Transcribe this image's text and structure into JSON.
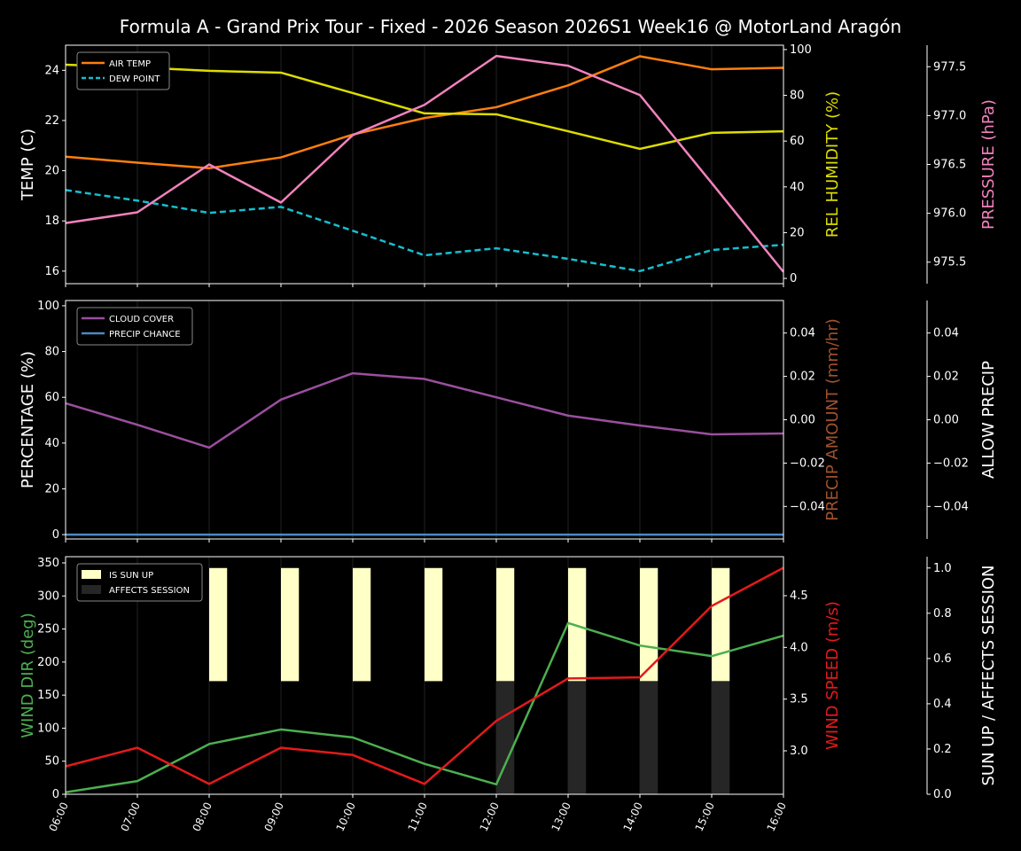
{
  "title": "Formula A - Grand Prix Tour - Fixed - 2026 Season  2026S1 Week16 @ MotorLand Aragón",
  "chart_data": [
    {
      "type": "line",
      "x": [
        "06:00",
        "07:00",
        "08:00",
        "09:00",
        "10:00",
        "11:00",
        "12:00",
        "13:00",
        "14:00",
        "15:00",
        "16:00"
      ],
      "ylabel": "TEMP (C)",
      "ylim": [
        15.5,
        25.0
      ],
      "yticks": [
        16,
        18,
        20,
        22,
        24
      ],
      "y2label": "REL HUMIDITY (%)",
      "y2lim": [
        -2.3,
        101.9
      ],
      "y2ticks": [
        0,
        20,
        40,
        60,
        80,
        100
      ],
      "y3label": "PRESSURE (hPa)",
      "y3lim": [
        975.28,
        977.72
      ],
      "y3ticks": [
        "975.5",
        "976.0",
        "976.5",
        "977.0",
        "977.5"
      ],
      "legend_placement": "upper-left",
      "series": [
        {
          "name": "AIR TEMP",
          "axis": "y",
          "color": "#ff7f0e",
          "dash": false,
          "values": [
            20.56,
            20.32,
            20.1,
            20.53,
            21.44,
            22.1,
            22.53,
            23.4,
            24.56,
            24.04,
            24.1
          ]
        },
        {
          "name": "DEW POINT",
          "axis": "y",
          "color": "#17becf",
          "dash": true,
          "values": [
            19.23,
            18.81,
            18.32,
            18.56,
            17.61,
            16.63,
            16.91,
            16.49,
            16.0,
            16.84,
            17.05
          ]
        },
        {
          "axis": "y2",
          "color": "#dddd00",
          "dash": false,
          "values": [
            93.4,
            92.2,
            90.7,
            89.9,
            81.0,
            72.1,
            71.7,
            64.3,
            56.6,
            63.6,
            64.3
          ]
        },
        {
          "axis": "y3",
          "color": "#f282bd",
          "dash": false,
          "values": [
            975.9,
            976.01,
            976.5,
            976.11,
            976.8,
            977.11,
            977.61,
            977.51,
            977.21,
            976.31,
            975.4
          ]
        }
      ],
      "colors": {
        "ylabel": "#ffffff",
        "y2label": "#dddd00",
        "y3label": "#f282bd"
      }
    },
    {
      "type": "line",
      "x": [
        "06:00",
        "07:00",
        "08:00",
        "09:00",
        "10:00",
        "11:00",
        "12:00",
        "13:00",
        "14:00",
        "15:00",
        "16:00"
      ],
      "ylabel": "PERCENTAGE (%)",
      "ylim": [
        -1.9,
        102.3
      ],
      "yticks": [
        0,
        20,
        40,
        60,
        80,
        100
      ],
      "y2label": "PRECIP AMOUNT (mm/hr)",
      "y2lim": [
        -0.055,
        0.055
      ],
      "y2ticks": [
        "−0.04",
        "−0.02",
        "0.00",
        "0.02",
        "0.04"
      ],
      "y3label": "ALLOW PRECIP",
      "y3lim": [
        -0.055,
        0.055
      ],
      "y3ticks": [
        "−0.04",
        "−0.02",
        "0.00",
        "0.02",
        "0.04"
      ],
      "legend_placement": "upper-left",
      "series": [
        {
          "name": "CLOUD COVER",
          "axis": "y",
          "color": "#9b4f9f",
          "dash": false,
          "values": [
            57.4,
            48,
            38,
            59,
            70.5,
            68,
            60,
            52,
            47.7,
            43.8,
            44.2
          ]
        },
        {
          "name": "PRECIP CHANCE",
          "axis": "y",
          "color": "#4a8ac4",
          "dash": false,
          "values": [
            0,
            0,
            0,
            0,
            0,
            0,
            0,
            0,
            0,
            0,
            0
          ]
        }
      ],
      "colors": {
        "ylabel": "#ffffff",
        "y2label": "#a0522d",
        "y3label": "#ffffff"
      }
    },
    {
      "type": "line",
      "x": [
        "06:00",
        "07:00",
        "08:00",
        "09:00",
        "10:00",
        "11:00",
        "12:00",
        "13:00",
        "14:00",
        "15:00",
        "16:00"
      ],
      "ylabel": "WIND DIR (deg)",
      "ylim": [
        0,
        359.4
      ],
      "yticks": [
        0,
        50,
        100,
        150,
        200,
        250,
        300,
        350
      ],
      "y2label": "WIND SPEED (m/s)",
      "y2lim": [
        2.58,
        4.877
      ],
      "y2ticks": [
        "3.0",
        "3.5",
        "4.0",
        "4.5"
      ],
      "y3label": "SUN UP / AFFECTS SESSION",
      "y3lim": [
        0,
        1.05
      ],
      "y3ticks": [
        "0.0",
        "0.2",
        "0.4",
        "0.6",
        "0.8",
        "1.0"
      ],
      "legend_placement": "upper-left",
      "series": [
        {
          "axis": "y",
          "color": "#4caf50",
          "dash": false,
          "values": [
            3,
            20,
            76,
            98,
            86,
            46,
            15,
            259,
            225,
            209,
            240
          ]
        },
        {
          "axis": "y2",
          "color": "#e31a1c",
          "dash": false,
          "values": [
            2.85,
            3.03,
            2.68,
            3.03,
            2.96,
            2.68,
            3.29,
            3.7,
            3.71,
            4.4,
            4.77
          ]
        }
      ],
      "bars": [
        {
          "name": "IS SUN UP",
          "color": "#ffffc8",
          "values": [
            false,
            false,
            true,
            true,
            true,
            true,
            true,
            true,
            true,
            true,
            false
          ]
        },
        {
          "name": "AFFECTS SESSION",
          "color": "#262626",
          "values": [
            false,
            false,
            false,
            false,
            false,
            false,
            true,
            true,
            true,
            true,
            false
          ]
        }
      ],
      "colors": {
        "ylabel": "#4caf50",
        "y2label": "#e31a1c",
        "y3label": "#ffffff"
      }
    }
  ]
}
